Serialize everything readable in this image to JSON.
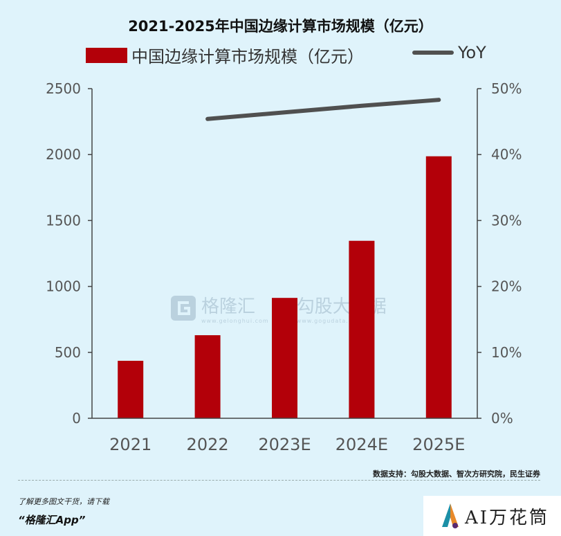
{
  "chart_data": {
    "type": "bar",
    "title": "2021-2025年中国边缘计算市场规模（亿元）",
    "categories": [
      "2021",
      "2022",
      "2023E",
      "2024E",
      "2025E"
    ],
    "series": [
      {
        "name": "中国边缘计算市场规模（亿元）",
        "type": "bar",
        "axis": "left",
        "color": "#b30009",
        "values": [
          436,
          630,
          913,
          1346,
          1987
        ]
      },
      {
        "name": "YoY",
        "type": "line",
        "axis": "right",
        "color": "#505050",
        "values": [
          null,
          45.4,
          46.4,
          47.4,
          48.3
        ]
      }
    ],
    "left_axis": {
      "ylim": [
        0,
        2500
      ],
      "ticks": [
        "0",
        "500",
        "1000",
        "1500",
        "2000",
        "2500"
      ]
    },
    "right_axis": {
      "ylim": [
        0,
        50
      ],
      "ticks": [
        "0%",
        "10%",
        "20%",
        "30%",
        "40%",
        "50%"
      ]
    },
    "legend_position": "top",
    "grid": false
  },
  "watermark": {
    "gelonghui": "格隆汇",
    "gelonghui_url": "www.gelonghui.com",
    "gogudata": "勾股大数据",
    "gogudata_url": "www.gogudata.com"
  },
  "footer": {
    "source": "数据支持：勾股大数据、智次方研究院，民生证券",
    "download_text": "了解更多图文干货，请下载",
    "app_name": "“格隆汇App”",
    "brand": "AI万花筒"
  }
}
